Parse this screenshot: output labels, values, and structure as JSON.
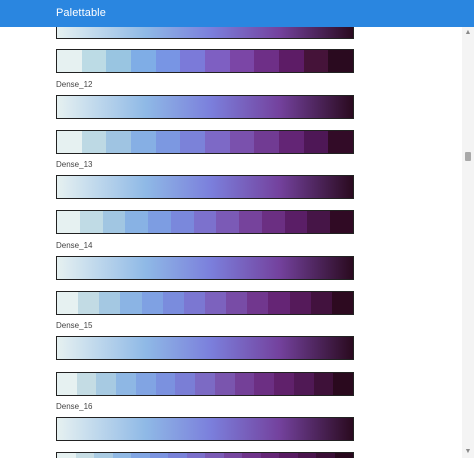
{
  "app": {
    "title": "Palettable"
  },
  "palettes": [
    {
      "label": "",
      "colors": [
        "#e6f1f1",
        "#bcdbe5",
        "#99c5e1",
        "#7fadE6",
        "#7895e4",
        "#7b7ad9",
        "#7e5fc2",
        "#7b46a6",
        "#6e2f87",
        "#5d1c66",
        "#451339",
        "#2a0a1f"
      ]
    },
    {
      "label": "Dense_12",
      "colors": [
        "#e6f1f1",
        "#bdd9e4",
        "#9fc4e2",
        "#86afe4",
        "#7c98e1",
        "#7b82d9",
        "#7d69c6",
        "#7a51ad",
        "#713b93",
        "#632575",
        "#4e1756",
        "#320b27"
      ]
    },
    {
      "label": "Dense_13",
      "colors": [
        "#e6f1f1",
        "#c0dbe5",
        "#a1c6e2",
        "#88b2e4",
        "#7d9de2",
        "#7a88dc",
        "#7c71cd",
        "#7b5ab6",
        "#76439c",
        "#6b2f82",
        "#5a1e66",
        "#461547",
        "#300a24"
      ]
    },
    {
      "label": "Dense_14",
      "colors": [
        "#e6f1f1",
        "#c2dbe4",
        "#a4c8e2",
        "#8bb4e4",
        "#7fa1e3",
        "#7a8cdd",
        "#7b77d2",
        "#7c62be",
        "#784ca6",
        "#71378e",
        "#652575",
        "#551a5a",
        "#42123e",
        "#2d0a20"
      ]
    },
    {
      "label": "Dense_15",
      "colors": [
        "#e6f1f1",
        "#c4dce4",
        "#a7cae2",
        "#8eb7e4",
        "#81a4e3",
        "#7b91df",
        "#7a7ed6",
        "#7c6ac4",
        "#7a55ae",
        "#744098",
        "#6c2f83",
        "#60216b",
        "#501955",
        "#3e1139",
        "#2a091e"
      ]
    },
    {
      "label": "Dense_16",
      "colors": [
        "#e6f1f1",
        "#c7dde4",
        "#aacbe2",
        "#91b9e4",
        "#82a6e3",
        "#7c94e0",
        "#7982d8",
        "#7b6fca",
        "#7b5bb5",
        "#77479f",
        "#6f348a",
        "#652776",
        "#581c62",
        "#4a154d",
        "#3a0f36",
        "#28081d"
      ]
    }
  ],
  "gradient": {
    "start": "#e6f1f1",
    "mid1": "#8fb9e6",
    "mid2": "#7b7fdc",
    "mid3": "#74429e",
    "end": "#2a0a1f"
  }
}
